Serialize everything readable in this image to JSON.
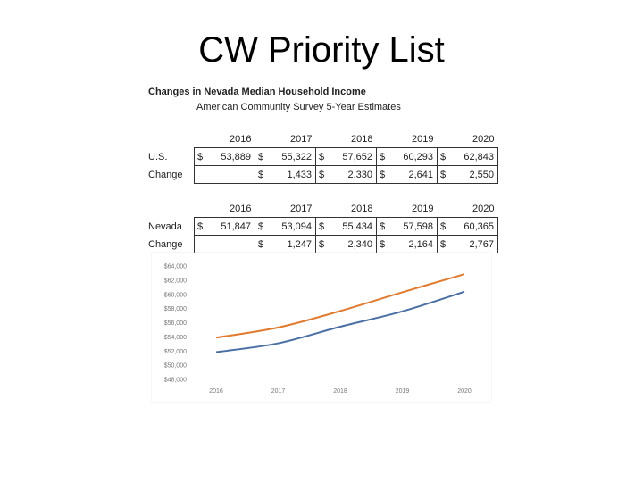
{
  "slide": {
    "title": "CW Priority List"
  },
  "table": {
    "heading": "Changes in Nevada Median Household Income",
    "subheading": "American Community Survey 5-Year Estimates",
    "years": [
      "2016",
      "2017",
      "2018",
      "2019",
      "2020"
    ],
    "us": {
      "label": "U.S.",
      "values": [
        "53,889",
        "55,322",
        "57,652",
        "60,293",
        "62,843"
      ],
      "currency": [
        "$",
        "$",
        "$",
        "$",
        "$"
      ],
      "change_label": "Change",
      "change_values": [
        "",
        "1,433",
        "2,330",
        "2,641",
        "2,550"
      ],
      "change_currency": [
        "",
        "$",
        "$",
        "$",
        "$"
      ]
    },
    "nevada": {
      "label": "Nevada",
      "values": [
        "51,847",
        "53,094",
        "55,434",
        "57,598",
        "60,365"
      ],
      "currency": [
        "$",
        "$",
        "$",
        "$",
        "$"
      ],
      "change_label": "Change",
      "change_values": [
        "",
        "1,247",
        "2,340",
        "2,164",
        "2,767"
      ],
      "change_currency": [
        "",
        "$",
        "$",
        "$",
        "$"
      ]
    }
  },
  "chart_data": {
    "type": "line",
    "x": [
      "2016",
      "2017",
      "2018",
      "2019",
      "2020"
    ],
    "series": [
      {
        "values": [
          53889,
          55322,
          57652,
          60293,
          62843
        ],
        "color": "#e07b30"
      },
      {
        "values": [
          51847,
          53094,
          55434,
          57598,
          60365
        ],
        "color": "#4a6fa5"
      }
    ],
    "y_ticks": [
      "$48,000",
      "$50,000",
      "$52,000",
      "$54,000",
      "$56,000",
      "$58,000",
      "$60,000",
      "$62,000",
      "$64,000"
    ],
    "x_ticks": [
      "2016",
      "2017",
      "2018",
      "2019",
      "2020"
    ],
    "ylim": [
      48000,
      64000
    ],
    "grid": false,
    "title": "",
    "xlabel": "",
    "ylabel": ""
  }
}
